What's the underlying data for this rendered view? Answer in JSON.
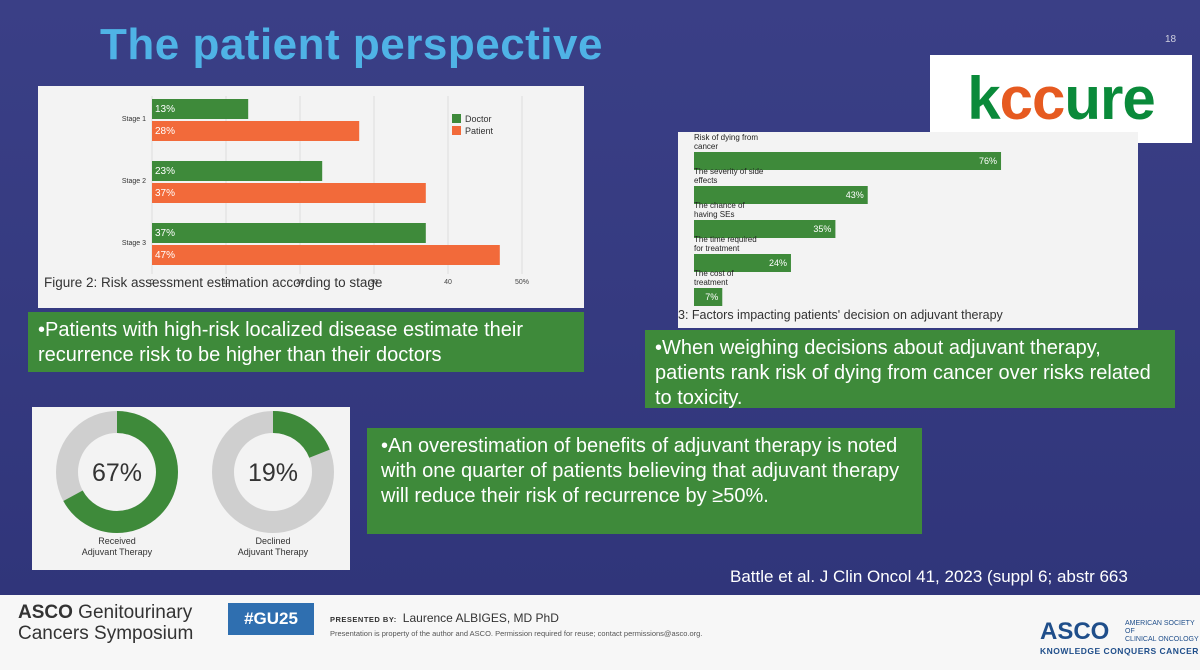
{
  "slide": {
    "title": "The patient perspective",
    "number": "18",
    "logo": {
      "text_part1": "k",
      "text_part2": "cc",
      "text_part3": "ure",
      "colors": {
        "green": "#0a8a3a",
        "orange": "#e65a20"
      }
    },
    "citation": "Battle et al. J Clin Oncol 41, 2023 (suppl 6; abstr 663"
  },
  "callouts": {
    "left": "•Patients with high-risk localized disease estimate their recurrence risk to be higher than their doctors",
    "right": "•When weighing decisions about adjuvant therapy, patients rank risk of dying from cancer over risks related to toxicity.",
    "bottom": "•An overestimation of benefits of adjuvant therapy is noted with one quarter of patients believing that adjuvant therapy will reduce their risk of recurrence by ≥50%."
  },
  "chart_data": [
    {
      "type": "bar",
      "orientation": "horizontal",
      "caption": "Figure 2: Risk assessment estimation according to stage",
      "categories": [
        "Stage 1",
        "Stage 2",
        "Stage 3"
      ],
      "series": [
        {
          "name": "Doctor",
          "values": [
            13,
            23,
            37
          ],
          "labels": [
            "13%",
            "23%",
            "37%"
          ],
          "color": "#3e8a3a"
        },
        {
          "name": "Patient",
          "values": [
            28,
            37,
            47
          ],
          "labels": [
            "28%",
            "37%",
            "47%"
          ],
          "color": "#f26a3a"
        }
      ],
      "xlim": [
        0,
        50
      ],
      "xticks": [
        "0",
        "10",
        "20",
        "30",
        "40",
        "50%"
      ],
      "legend": "top-right"
    },
    {
      "type": "bar",
      "orientation": "horizontal",
      "caption": "3: Factors impacting patients' decision on adjuvant therapy",
      "categories": [
        "Risk of dying from cancer",
        "The severity of side effects",
        "The chance of having SEs",
        "The time required for treatment",
        "The cost of treatment"
      ],
      "values": [
        76,
        43,
        35,
        24,
        7
      ],
      "labels": [
        "76%",
        "43%",
        "35%",
        "24%",
        "7%"
      ],
      "color": "#3e8a3a",
      "xlim": [
        0,
        100
      ]
    },
    {
      "type": "pie",
      "variant": "donut",
      "charts": [
        {
          "center_label": "67%",
          "label": "Received Adjuvant Therapy",
          "value": 67
        },
        {
          "center_label": "19%",
          "label": "Declined Adjuvant Therapy",
          "value": 19
        }
      ],
      "colors": {
        "filled": "#3e8a3a",
        "rest": "#cfcfcf"
      }
    }
  ],
  "footer": {
    "left_line1_bold": "ASCO",
    "left_line1_rest": " Genitourinary",
    "left_line2": "Cancers Symposium",
    "hashtag": "#GU25",
    "presented_label": "PRESENTED BY:",
    "presenter": "Laurence ALBIGES, MD PhD",
    "disclaimer": "Presentation is property of the author and ASCO. Permission required for reuse; contact permissions@asco.org.",
    "asco": "ASCO",
    "asco_sub1": "AMERICAN SOCIETY OF",
    "asco_sub2": "CLINICAL ONCOLOGY",
    "asco_tag": "KNOWLEDGE CONQUERS CANCER"
  }
}
